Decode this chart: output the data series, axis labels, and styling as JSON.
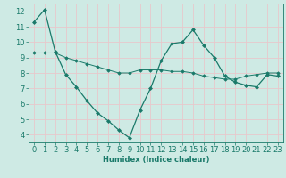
{
  "xlabel": "Humidex (Indice chaleur)",
  "bg_color": "#ceeae4",
  "grid_color": "#e8c8cc",
  "line_color": "#1a7a6a",
  "x_line1": [
    0,
    1,
    2,
    3,
    4,
    5,
    6,
    7,
    8,
    9,
    10,
    11,
    12,
    13,
    14,
    15,
    16,
    17,
    18,
    19,
    20,
    21,
    22,
    23
  ],
  "y_line1": [
    11.3,
    12.1,
    9.4,
    7.9,
    7.1,
    6.2,
    5.4,
    4.9,
    4.3,
    3.8,
    5.6,
    7.0,
    8.8,
    9.9,
    10.0,
    10.8,
    9.8,
    9.0,
    7.8,
    7.4,
    7.2,
    7.1,
    7.9,
    7.8
  ],
  "x_line2": [
    0,
    1,
    2,
    3,
    4,
    5,
    6,
    7,
    8,
    9,
    10,
    11,
    12,
    13,
    14,
    15,
    16,
    17,
    18,
    19,
    20,
    21,
    22,
    23
  ],
  "y_line2": [
    9.3,
    9.3,
    9.3,
    9.0,
    8.8,
    8.6,
    8.4,
    8.2,
    8.0,
    8.0,
    8.2,
    8.2,
    8.2,
    8.1,
    8.1,
    8.0,
    7.8,
    7.7,
    7.6,
    7.6,
    7.8,
    7.9,
    8.0,
    8.0
  ],
  "xlim": [
    -0.5,
    23.5
  ],
  "ylim": [
    3.5,
    12.5
  ],
  "yticks": [
    4,
    5,
    6,
    7,
    8,
    9,
    10,
    11,
    12
  ],
  "xticks": [
    0,
    1,
    2,
    3,
    4,
    5,
    6,
    7,
    8,
    9,
    10,
    11,
    12,
    13,
    14,
    15,
    16,
    17,
    18,
    19,
    20,
    21,
    22,
    23
  ],
  "marker_size": 3,
  "linewidth": 0.9,
  "font_size": 6.0
}
